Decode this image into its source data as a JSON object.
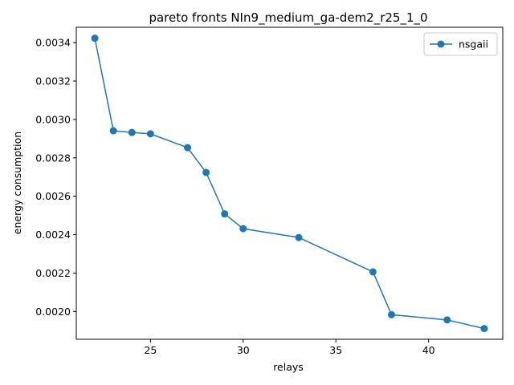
{
  "chart_data": {
    "type": "line",
    "title": "pareto fronts NIn9_medium_ga-dem2_r25_1_0",
    "xlabel": "relays",
    "ylabel": "energy consumption",
    "xlim": [
      21.0,
      44.0
    ],
    "ylim": [
      0.001855,
      0.00348
    ],
    "xticks": [
      25,
      30,
      35,
      40
    ],
    "xtick_labels": [
      "25",
      "30",
      "35",
      "40"
    ],
    "yticks": [
      0.002,
      0.0022,
      0.0024,
      0.0026,
      0.0028,
      0.003,
      0.0032,
      0.0034
    ],
    "ytick_labels": [
      "0.0020",
      "0.0022",
      "0.0024",
      "0.0026",
      "0.0028",
      "0.0030",
      "0.0032",
      "0.0034"
    ],
    "grid": false,
    "legend_position": "top-right",
    "series": [
      {
        "name": "nsgaii",
        "color": "#1f77b4",
        "marker": "circle",
        "x": [
          22,
          23,
          24,
          25,
          27,
          28,
          29,
          30,
          33,
          37,
          38,
          41,
          43
        ],
        "y": [
          0.003423,
          0.002941,
          0.002932,
          0.002925,
          0.002853,
          0.002724,
          0.002508,
          0.002431,
          0.002385,
          0.002206,
          0.001983,
          0.001956,
          0.001911
        ]
      }
    ]
  }
}
